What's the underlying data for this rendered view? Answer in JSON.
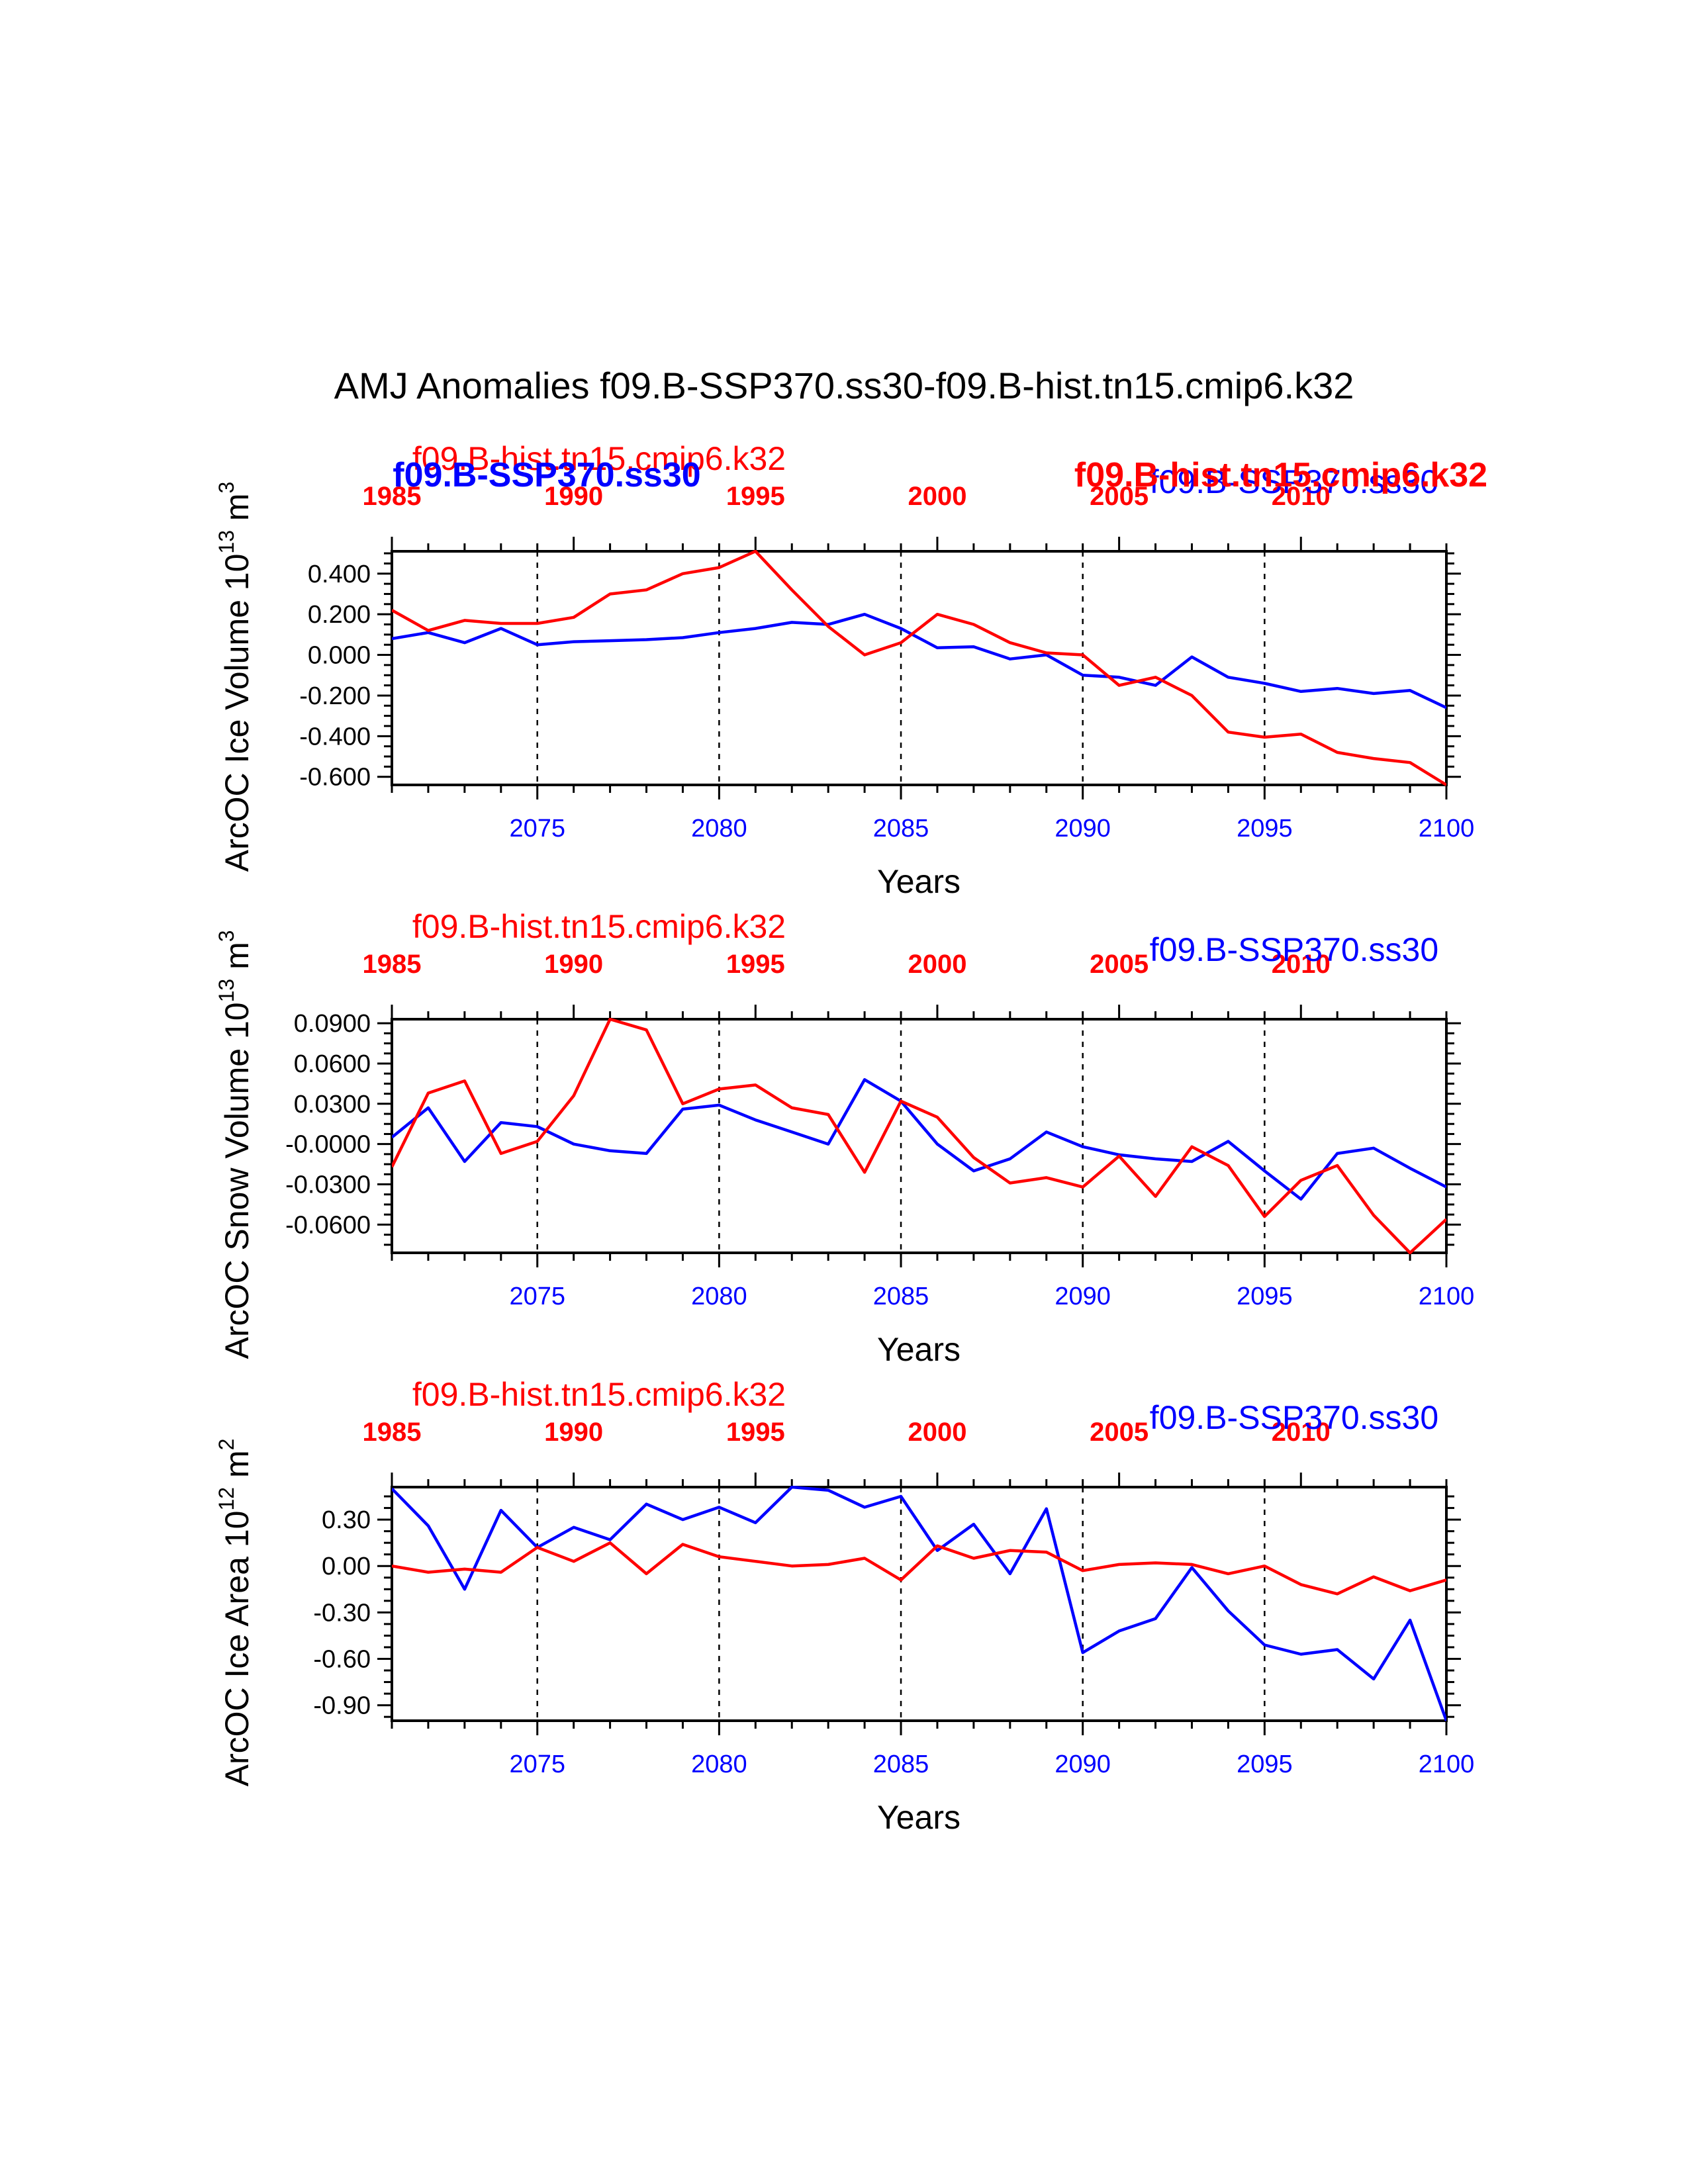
{
  "title": "AMJ Anomalies f09.B-SSP370.ss30-f09.B-hist.tn15.cmip6.k32",
  "colors": {
    "case1": "#0000ff",
    "case2": "#ff0000",
    "axis": "#000000"
  },
  "case1_name": "f09.B-SSP370.ss30",
  "case2_name": "f09.B-hist.tn15.cmip6.k32",
  "chart_data": [
    {
      "type": "line",
      "ylabel": "ArcOC Ice Volume 10",
      "ylabel_exp": "13",
      "ylabel_unit": " m",
      "ylabel_unit_exp": "3",
      "xlabel": "Years",
      "ylim": [
        -0.64,
        0.51
      ],
      "yticks": [
        0.4,
        0.2,
        0.0,
        -0.2,
        -0.4,
        -0.6
      ],
      "ytick_labels": [
        "0.400",
        "0.200",
        "0.000",
        "-0.200",
        "-0.400",
        "-0.600"
      ],
      "bottom_ticks": [
        "2075",
        "2080",
        "2085",
        "2090",
        "2095",
        "2100"
      ],
      "top_ticks": [
        "1985",
        "1990",
        "1995",
        "2000",
        "2005",
        "2010"
      ],
      "caption_left": "f09.B-hist.tn15.cmip6.k32",
      "caption_right": "f09.B-SSP370.ss30",
      "overlay_left": "f09.B-SSP370.ss30",
      "overlay_right": "f09.B-hist.tn15.cmip6.k32",
      "series": [
        {
          "name": "f09.B-SSP370.ss30",
          "x": [
            2071,
            2072,
            2073,
            2074,
            2075,
            2076,
            2077,
            2078,
            2079,
            2080,
            2081,
            2082,
            2083,
            2084,
            2085,
            2086,
            2087,
            2088,
            2089,
            2090,
            2091,
            2092,
            2093,
            2094,
            2095,
            2096,
            2097,
            2098,
            2099,
            2100
          ],
          "values": [
            0.08,
            0.11,
            0.06,
            0.13,
            0.05,
            0.065,
            0.07,
            0.075,
            0.085,
            0.11,
            0.13,
            0.16,
            0.15,
            0.2,
            0.13,
            0.035,
            0.04,
            -0.02,
            0.0,
            -0.1,
            -0.11,
            -0.15,
            -0.01,
            -0.11,
            -0.14,
            -0.18,
            -0.165,
            -0.19,
            -0.175,
            -0.26
          ]
        },
        {
          "name": "f09.B-hist.tn15.cmip6.k32",
          "x": [
            1985,
            1986,
            1987,
            1988,
            1989,
            1990,
            1991,
            1992,
            1993,
            1994,
            1995,
            1996,
            1997,
            1998,
            1999,
            2000,
            2001,
            2002,
            2003,
            2004,
            2005,
            2006,
            2007,
            2008,
            2009,
            2010,
            2011,
            2012,
            2013,
            2014
          ],
          "values": [
            0.22,
            0.12,
            0.17,
            0.155,
            0.155,
            0.185,
            0.3,
            0.32,
            0.4,
            0.43,
            0.51,
            0.32,
            0.14,
            0.0,
            0.06,
            0.2,
            0.15,
            0.06,
            0.01,
            0.0,
            -0.15,
            -0.11,
            -0.2,
            -0.38,
            -0.405,
            -0.39,
            -0.48,
            -0.51,
            -0.53,
            -0.64
          ]
        }
      ]
    },
    {
      "type": "line",
      "ylabel": "ArcOC Snow Volume 10",
      "ylabel_exp": "13",
      "ylabel_unit": " m",
      "ylabel_unit_exp": "3",
      "xlabel": "Years",
      "ylim": [
        -0.081,
        0.093
      ],
      "yticks": [
        0.09,
        0.06,
        0.03,
        0.0,
        -0.03,
        -0.06
      ],
      "ytick_labels": [
        "0.0900",
        "0.0600",
        "0.0300",
        "-0.0000",
        "-0.0300",
        "-0.0600"
      ],
      "bottom_ticks": [
        "2075",
        "2080",
        "2085",
        "2090",
        "2095",
        "2100"
      ],
      "top_ticks": [
        "1985",
        "1990",
        "1995",
        "2000",
        "2005",
        "2010"
      ],
      "caption_left": "f09.B-hist.tn15.cmip6.k32",
      "caption_right": "f09.B-SSP370.ss30",
      "series": [
        {
          "name": "f09.B-SSP370.ss30",
          "x": [
            2071,
            2072,
            2073,
            2074,
            2075,
            2076,
            2077,
            2078,
            2079,
            2080,
            2081,
            2082,
            2083,
            2084,
            2085,
            2086,
            2087,
            2088,
            2089,
            2090,
            2091,
            2092,
            2093,
            2094,
            2095,
            2096,
            2097,
            2098,
            2099,
            2100
          ],
          "values": [
            0.005,
            0.027,
            -0.013,
            0.016,
            0.013,
            0.0,
            -0.005,
            -0.007,
            0.026,
            0.029,
            0.018,
            0.009,
            0.0,
            0.048,
            0.032,
            0.0,
            -0.02,
            -0.011,
            0.009,
            -0.002,
            -0.008,
            -0.011,
            -0.013,
            0.002,
            -0.02,
            -0.041,
            -0.007,
            -0.003,
            -0.018,
            -0.032
          ]
        },
        {
          "name": "f09.B-hist.tn15.cmip6.k32",
          "x": [
            1985,
            1986,
            1987,
            1988,
            1989,
            1990,
            1991,
            1992,
            1993,
            1994,
            1995,
            1996,
            1997,
            1998,
            1999,
            2000,
            2001,
            2002,
            2003,
            2004,
            2005,
            2006,
            2007,
            2008,
            2009,
            2010,
            2011,
            2012,
            2013,
            2014
          ],
          "values": [
            -0.017,
            0.038,
            0.047,
            -0.007,
            0.002,
            0.036,
            0.093,
            0.085,
            0.03,
            0.041,
            0.044,
            0.027,
            0.022,
            -0.021,
            0.032,
            0.02,
            -0.01,
            -0.029,
            -0.025,
            -0.032,
            -0.009,
            -0.039,
            -0.002,
            -0.016,
            -0.054,
            -0.027,
            -0.016,
            -0.053,
            -0.081,
            -0.056
          ]
        }
      ]
    },
    {
      "type": "line",
      "ylabel": "ArcOC Ice Area 10",
      "ylabel_exp": "12",
      "ylabel_unit": " m",
      "ylabel_unit_exp": "2",
      "xlabel": "Years",
      "ylim": [
        -1.0,
        0.51
      ],
      "yticks": [
        0.3,
        0.0,
        -0.3,
        -0.6,
        -0.9
      ],
      "ytick_labels": [
        "0.30",
        "0.00",
        "-0.30",
        "-0.60",
        "-0.90"
      ],
      "bottom_ticks": [
        "2075",
        "2080",
        "2085",
        "2090",
        "2095",
        "2100"
      ],
      "top_ticks": [
        "1985",
        "1990",
        "1995",
        "2000",
        "2005",
        "2010"
      ],
      "caption_left": "f09.B-hist.tn15.cmip6.k32",
      "caption_right": "f09.B-SSP370.ss30",
      "series": [
        {
          "name": "f09.B-SSP370.ss30",
          "x": [
            2071,
            2072,
            2073,
            2074,
            2075,
            2076,
            2077,
            2078,
            2079,
            2080,
            2081,
            2082,
            2083,
            2084,
            2085,
            2086,
            2087,
            2088,
            2089,
            2090,
            2091,
            2092,
            2093,
            2094,
            2095,
            2096,
            2097,
            2098,
            2099,
            2100
          ],
          "values": [
            0.5,
            0.26,
            -0.15,
            0.36,
            0.12,
            0.25,
            0.17,
            0.4,
            0.3,
            0.38,
            0.28,
            0.51,
            0.49,
            0.38,
            0.45,
            0.1,
            0.27,
            -0.05,
            0.37,
            -0.56,
            -0.42,
            -0.34,
            -0.01,
            -0.29,
            -0.51,
            -0.57,
            -0.54,
            -0.73,
            -0.35,
            -1.0
          ]
        },
        {
          "name": "f09.B-hist.tn15.cmip6.k32",
          "x": [
            1985,
            1986,
            1987,
            1988,
            1989,
            1990,
            1991,
            1992,
            1993,
            1994,
            1995,
            1996,
            1997,
            1998,
            1999,
            2000,
            2001,
            2002,
            2003,
            2004,
            2005,
            2006,
            2007,
            2008,
            2009,
            2010,
            2011,
            2012,
            2013,
            2014
          ],
          "values": [
            0.0,
            -0.04,
            -0.02,
            -0.04,
            0.12,
            0.03,
            0.15,
            -0.05,
            0.14,
            0.06,
            0.03,
            0.0,
            0.01,
            0.05,
            -0.09,
            0.13,
            0.05,
            0.1,
            0.09,
            -0.03,
            0.01,
            0.02,
            0.01,
            -0.05,
            0.0,
            -0.12,
            -0.18,
            -0.07,
            -0.16,
            -0.09
          ]
        }
      ]
    }
  ]
}
